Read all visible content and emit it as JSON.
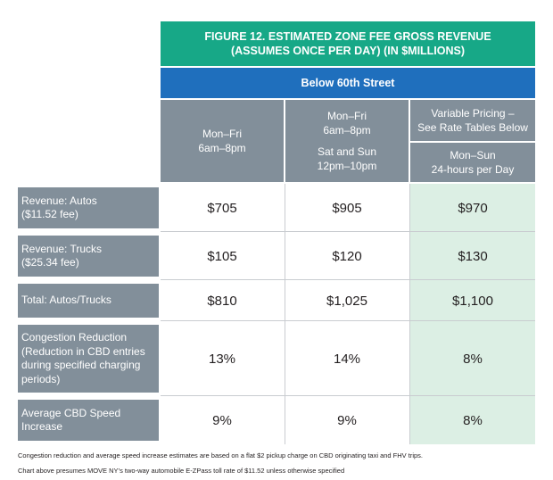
{
  "figure": {
    "title_line1": "FIGURE 12. ESTIMATED ZONE FEE GROSS REVENUE",
    "title_line2": "(ASSUMES ONCE PER DAY) (IN $MILLIONS)",
    "subtitle": "Below 60th Street"
  },
  "columns": [
    {
      "line1": "Mon–Fri",
      "line2": "6am–8pm"
    },
    {
      "line1": "Mon–Fri",
      "line2": "6am–8pm",
      "line3": "Sat and Sun",
      "line4": "12pm–10pm"
    },
    {
      "top1": "Variable Pricing –",
      "top2": "See Rate Tables Below",
      "bottom1": "Mon–Sun",
      "bottom2": "24-hours per Day"
    }
  ],
  "rows": [
    {
      "label_lines": [
        "Revenue: Autos",
        "($11.52 fee)"
      ],
      "values": [
        "$705",
        "$905",
        "$970"
      ]
    },
    {
      "label_lines": [
        "Revenue: Trucks",
        "($25.34 fee)"
      ],
      "values": [
        "$105",
        "$120",
        "$130"
      ]
    },
    {
      "label_lines": [
        "Total: Autos/Trucks"
      ],
      "values": [
        "$810",
        "$1,025",
        "$1,100"
      ]
    },
    {
      "label_lines": [
        "Congestion Reduction",
        "(Reduction in CBD entries",
        "during specified charging",
        "periods)"
      ],
      "values": [
        "13%",
        "14%",
        "8%"
      ]
    },
    {
      "label_lines": [
        "Average CBD Speed",
        "Increase"
      ],
      "values": [
        "9%",
        "9%",
        "8%"
      ]
    }
  ],
  "footnotes": {
    "note1": "Congestion reduction and average speed increase estimates are based on a flat $2 pickup charge on CBD originating taxi and FHV trips.",
    "note2": "Chart above presumes MOVE NY’s two-way automobile E-ZPass toll rate of $11.52 unless otherwise specified"
  },
  "colors": {
    "title_green": "#17a887",
    "subtitle_blue": "#1f6fbd",
    "header_gray": "#828f9a",
    "highlight_green": "#dcefe4"
  }
}
